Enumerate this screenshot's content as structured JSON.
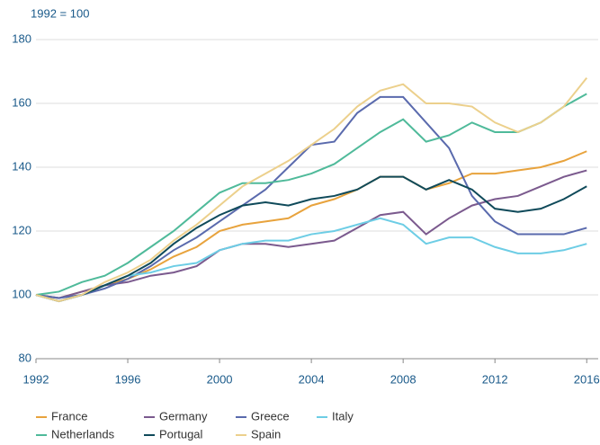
{
  "chart_data": {
    "type": "line",
    "y_label": "1992 = 100",
    "x": [
      1992,
      1993,
      1994,
      1995,
      1996,
      1997,
      1998,
      1999,
      2000,
      2001,
      2002,
      2003,
      2004,
      2005,
      2006,
      2007,
      2008,
      2009,
      2010,
      2011,
      2012,
      2013,
      2014,
      2015,
      2016
    ],
    "series": [
      {
        "name": "France",
        "color": "#e8a33d",
        "values": [
          100,
          99,
          101,
          103,
          105,
          108,
          112,
          115,
          120,
          122,
          123,
          124,
          128,
          130,
          133,
          137,
          137,
          133,
          135,
          138,
          138,
          139,
          140,
          142,
          145
        ]
      },
      {
        "name": "Germany",
        "color": "#7b5a8e",
        "values": [
          100,
          99,
          101,
          103,
          104,
          106,
          107,
          109,
          114,
          116,
          116,
          115,
          116,
          117,
          121,
          125,
          126,
          119,
          124,
          128,
          130,
          131,
          134,
          137,
          139
        ]
      },
      {
        "name": "Greece",
        "color": "#5a6aad",
        "values": [
          100,
          99,
          100,
          102,
          105,
          109,
          114,
          118,
          123,
          128,
          133,
          140,
          147,
          148,
          157,
          162,
          162,
          154,
          146,
          131,
          123,
          119,
          119,
          119,
          121
        ]
      },
      {
        "name": "Italy",
        "color": "#6dcde5",
        "values": [
          100,
          98,
          100,
          103,
          106,
          107,
          109,
          110,
          114,
          116,
          117,
          117,
          119,
          120,
          122,
          124,
          122,
          116,
          118,
          118,
          115,
          113,
          113,
          114,
          116
        ]
      },
      {
        "name": "Netherlands",
        "color": "#4fba9a",
        "values": [
          100,
          101,
          104,
          106,
          110,
          115,
          120,
          126,
          132,
          135,
          135,
          136,
          138,
          141,
          146,
          151,
          155,
          148,
          150,
          154,
          151,
          151,
          154,
          159,
          163
        ]
      },
      {
        "name": "Portugal",
        "color": "#0f4a5a",
        "values": [
          100,
          98,
          100,
          103,
          106,
          110,
          116,
          121,
          125,
          128,
          129,
          128,
          130,
          131,
          133,
          137,
          137,
          133,
          136,
          133,
          127,
          126,
          127,
          130,
          134
        ]
      },
      {
        "name": "Spain",
        "color": "#ecd08c",
        "values": [
          100,
          98,
          100,
          104,
          107,
          111,
          117,
          122,
          128,
          134,
          138,
          142,
          147,
          152,
          159,
          164,
          166,
          160,
          160,
          159,
          154,
          151,
          154,
          159,
          168
        ]
      }
    ],
    "xlim": [
      1992,
      2016.5
    ],
    "xticks": [
      1992,
      1996,
      2000,
      2004,
      2008,
      2012,
      2016
    ],
    "ylim": [
      80,
      180
    ],
    "yticks": [
      80,
      100,
      120,
      140,
      160,
      180
    ],
    "grid": true
  }
}
